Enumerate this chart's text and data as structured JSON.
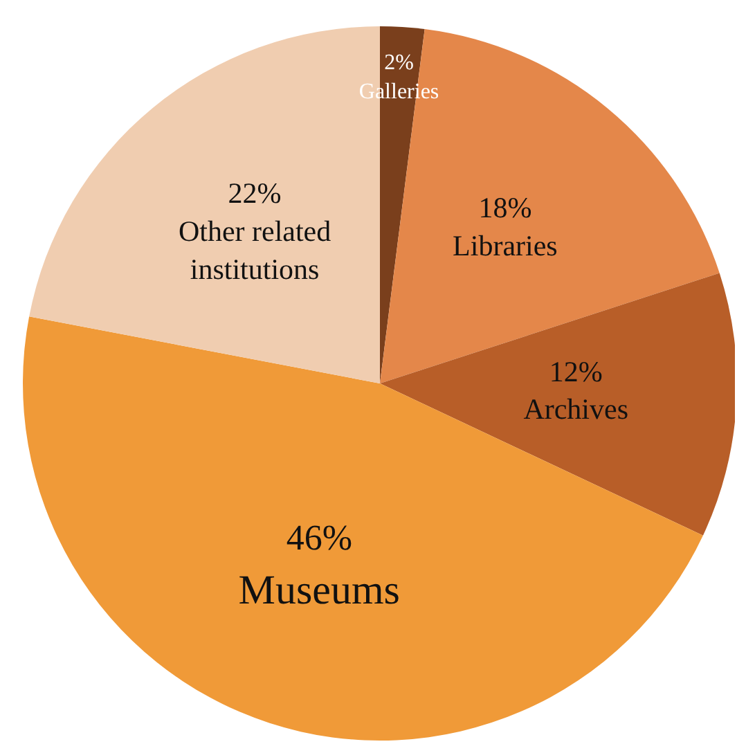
{
  "chart_data": {
    "type": "pie",
    "categories": [
      "Galleries",
      "Libraries",
      "Archives",
      "Museums",
      "Other related institutions"
    ],
    "values": [
      2,
      18,
      12,
      46,
      22
    ],
    "colors": [
      "#7a3f1c",
      "#e4874a",
      "#b85e28",
      "#f09a38",
      "#f0cdb0"
    ],
    "value_labels": [
      "2%",
      "18%",
      "12%",
      "46%",
      "22%"
    ],
    "legend": false
  }
}
